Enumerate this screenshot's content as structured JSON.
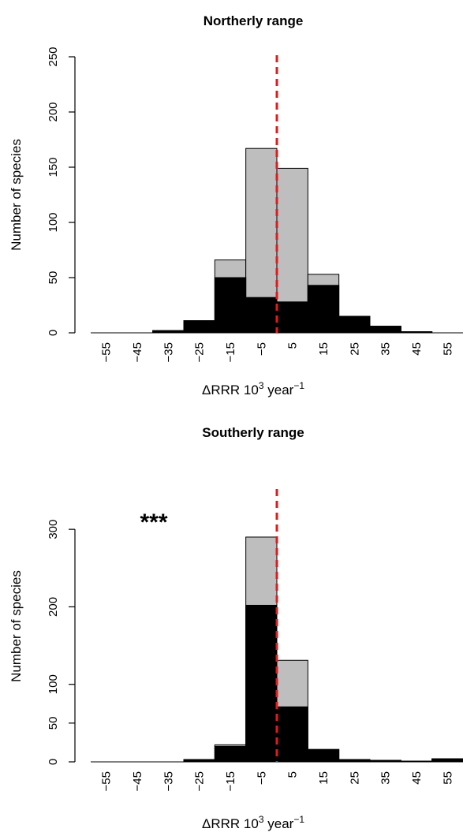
{
  "chart_data": [
    {
      "type": "bar",
      "title": "Northerly range",
      "xlabel": "ΔRRR 10",
      "xlabel_sup": "3",
      "xlabel_after": " year",
      "xlabel_after_sup": "−1",
      "ylabel": "Number of species",
      "categories": [
        "−55",
        "−45",
        "−35",
        "−25",
        "−15",
        "−5",
        "5",
        "15",
        "25",
        "35",
        "45",
        "55"
      ],
      "bin_centers": [
        -55,
        -45,
        -35,
        -25,
        -15,
        -5,
        5,
        15,
        25,
        35,
        45,
        55
      ],
      "bin_width": 10,
      "y_ticks": [
        0,
        50,
        100,
        150,
        200,
        250
      ],
      "ylim": [
        0,
        250
      ],
      "xlim": [
        -60,
        60
      ],
      "series": [
        {
          "color": "#bebebe",
          "values": [
            0,
            0,
            2,
            11,
            66,
            167,
            149,
            53,
            15,
            6,
            1,
            0
          ]
        },
        {
          "color": "#000000",
          "values": [
            0,
            0,
            2,
            11,
            50,
            32,
            28,
            43,
            15,
            6,
            1,
            0
          ]
        }
      ],
      "reference_line": {
        "x": 0,
        "color": "#e31a1c",
        "style": "dashed"
      },
      "annotation": ""
    },
    {
      "type": "bar",
      "title": "Southerly range",
      "xlabel": "ΔRRR 10",
      "xlabel_sup": "3",
      "xlabel_after": " year",
      "xlabel_after_sup": "−1",
      "ylabel": "Number of species",
      "categories": [
        "−55",
        "−45",
        "−35",
        "−25",
        "−15",
        "−5",
        "5",
        "15",
        "25",
        "35",
        "45",
        "55"
      ],
      "bin_centers": [
        -55,
        -45,
        -35,
        -25,
        -15,
        -5,
        5,
        15,
        25,
        35,
        45,
        55
      ],
      "bin_width": 10,
      "y_ticks": [
        0,
        50,
        100,
        200,
        300
      ],
      "ylim": [
        0,
        350
      ],
      "xlim": [
        -60,
        60
      ],
      "series": [
        {
          "color": "#bebebe",
          "values": [
            0,
            0,
            0,
            3,
            22,
            290,
            131,
            16,
            3,
            2,
            1,
            4
          ]
        },
        {
          "color": "#000000",
          "values": [
            0,
            0,
            0,
            3,
            20,
            202,
            71,
            16,
            3,
            2,
            1,
            4
          ]
        }
      ],
      "reference_line": {
        "x": 0,
        "color": "#e31a1c",
        "style": "dashed"
      },
      "annotation": "***"
    }
  ]
}
